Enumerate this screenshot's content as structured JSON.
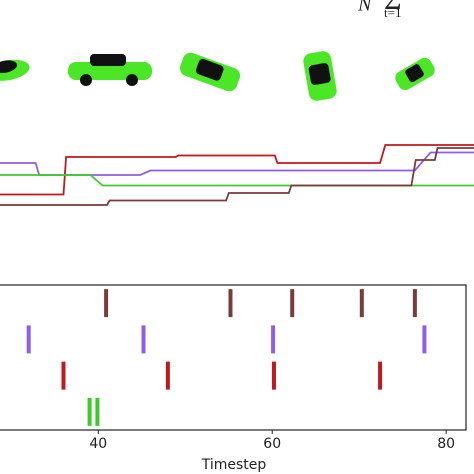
{
  "formula": {
    "left": "N",
    "operator": "Σ",
    "lower": "t=1"
  },
  "chart_data": [
    {
      "type": "line",
      "xlim": [
        28.7,
        83.2
      ],
      "ylim": [
        0,
        1
      ],
      "series": [
        {
          "color": "#c0191c",
          "x": [
            28.7,
            36.0,
            36.3,
            48.9,
            49.2,
            60.3,
            60.6,
            72.4,
            73.0,
            83.2
          ],
          "values": [
            0.57,
            0.57,
            0.82,
            0.82,
            0.83,
            0.83,
            0.78,
            0.78,
            0.9,
            0.9
          ]
        },
        {
          "color": "#8f5ee8",
          "x": [
            28.7,
            32.8,
            33.2,
            44.8,
            46.0,
            76.4,
            78.2,
            83.2
          ],
          "values": [
            0.78,
            0.78,
            0.7,
            0.7,
            0.73,
            0.73,
            0.85,
            0.85
          ]
        },
        {
          "color": "#3ecb2a",
          "x": [
            28.7,
            39.1,
            40.5,
            83.2
          ],
          "values": [
            0.7,
            0.7,
            0.63,
            0.63
          ]
        },
        {
          "color": "#7a3b3b",
          "x": [
            28.7,
            41.0,
            41.3,
            54.7,
            55.0,
            61.9,
            62.2,
            76.0,
            76.5,
            78.7,
            79.0,
            83.2
          ],
          "values": [
            0.5,
            0.5,
            0.53,
            0.53,
            0.58,
            0.58,
            0.63,
            0.63,
            0.8,
            0.8,
            0.88,
            0.88
          ]
        }
      ]
    },
    {
      "type": "event",
      "xlabel": "Timestep",
      "xlim": [
        28.7,
        83.2
      ],
      "xticks": [
        40,
        60,
        80
      ],
      "series": [
        {
          "color": "#7a3b3b",
          "values": [
            40.9,
            55.2,
            62.3,
            70.3,
            76.4
          ]
        },
        {
          "color": "#8f5ee8",
          "values": [
            32.0,
            45.2,
            60.1,
            77.5
          ]
        },
        {
          "color": "#c0191c",
          "values": [
            36.0,
            48.0,
            60.2,
            72.4
          ]
        },
        {
          "color": "#3ecb2a",
          "values": [
            39.0,
            39.9
          ]
        }
      ]
    }
  ]
}
